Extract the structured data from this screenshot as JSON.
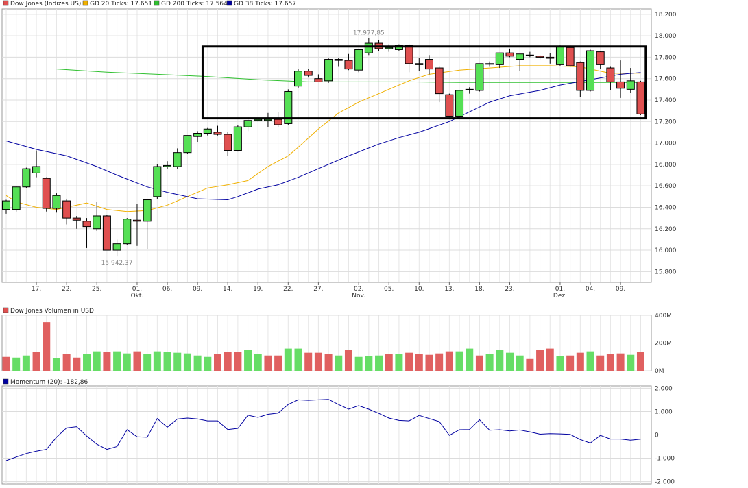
{
  "chart_data": [
    {
      "type": "candlestick",
      "legend": [
        {
          "label": "Dow Jones (Indizes US)",
          "color": "#e05050"
        },
        {
          "label": "GD 20 Ticks: 17.651",
          "color": "#f0b000"
        },
        {
          "label": "GD 200 Ticks: 17.564",
          "color": "#30c030"
        },
        {
          "label": "GD 38 Ticks: 17.657",
          "color": "#0000a0"
        }
      ],
      "ylim": [
        15700,
        18250
      ],
      "y_ticks": [
        15800,
        16000,
        16200,
        16400,
        16600,
        16800,
        17000,
        17200,
        17400,
        17600,
        17800,
        18000,
        18200
      ],
      "y_tick_labels": [
        "15.800",
        "16.000",
        "16.200",
        "16.400",
        "16.600",
        "16.800",
        "17.000",
        "17.200",
        "17.400",
        "17.600",
        "17.800",
        "18.000",
        "18.200"
      ],
      "x_ticks": [
        {
          "i": 3,
          "label": "17."
        },
        {
          "i": 6,
          "label": "22."
        },
        {
          "i": 9,
          "label": "25."
        },
        {
          "i": 13,
          "label": "01.",
          "sub": "Okt."
        },
        {
          "i": 16,
          "label": "06."
        },
        {
          "i": 19,
          "label": "09."
        },
        {
          "i": 22,
          "label": "14."
        },
        {
          "i": 25,
          "label": "19."
        },
        {
          "i": 28,
          "label": "22."
        },
        {
          "i": 31,
          "label": "27."
        },
        {
          "i": 35,
          "label": "02.",
          "sub": "Nov."
        },
        {
          "i": 38,
          "label": "05."
        },
        {
          "i": 41,
          "label": "10."
        },
        {
          "i": 44,
          "label": "13."
        },
        {
          "i": 47,
          "label": "18."
        },
        {
          "i": 50,
          "label": "23."
        },
        {
          "i": 55,
          "label": "01.",
          "sub": "Dez."
        },
        {
          "i": 58,
          "label": "04."
        },
        {
          "i": 61,
          "label": "09."
        }
      ],
      "candles": [
        {
          "o": 16380,
          "h": 16470,
          "l": 16340,
          "c": 16460
        },
        {
          "o": 16380,
          "h": 16600,
          "l": 16360,
          "c": 16590
        },
        {
          "o": 16590,
          "h": 16770,
          "l": 16580,
          "c": 16760
        },
        {
          "o": 16720,
          "h": 16930,
          "l": 16680,
          "c": 16780
        },
        {
          "o": 16670,
          "h": 16680,
          "l": 16360,
          "c": 16390
        },
        {
          "o": 16390,
          "h": 16530,
          "l": 16350,
          "c": 16510
        },
        {
          "o": 16460,
          "h": 16480,
          "l": 16240,
          "c": 16300
        },
        {
          "o": 16300,
          "h": 16320,
          "l": 16200,
          "c": 16280
        },
        {
          "o": 16270,
          "h": 16300,
          "l": 16020,
          "c": 16220
        },
        {
          "o": 16200,
          "h": 16450,
          "l": 16180,
          "c": 16320
        },
        {
          "o": 16320,
          "h": 16330,
          "l": 16000,
          "c": 16000
        },
        {
          "o": 16000,
          "h": 16100,
          "l": 15942,
          "c": 16060
        },
        {
          "o": 16060,
          "h": 16300,
          "l": 16050,
          "c": 16290
        },
        {
          "o": 16280,
          "h": 16430,
          "l": 16040,
          "c": 16270
        },
        {
          "o": 16270,
          "h": 16480,
          "l": 16010,
          "c": 16470
        },
        {
          "o": 16500,
          "h": 16800,
          "l": 16480,
          "c": 16780
        },
        {
          "o": 16780,
          "h": 16830,
          "l": 16760,
          "c": 16790
        },
        {
          "o": 16780,
          "h": 16950,
          "l": 16760,
          "c": 16910
        },
        {
          "o": 16910,
          "h": 17070,
          "l": 16900,
          "c": 17070
        },
        {
          "o": 17060,
          "h": 17110,
          "l": 17010,
          "c": 17090
        },
        {
          "o": 17090,
          "h": 17140,
          "l": 17070,
          "c": 17130
        },
        {
          "o": 17100,
          "h": 17160,
          "l": 17070,
          "c": 17080
        },
        {
          "o": 17080,
          "h": 17100,
          "l": 16880,
          "c": 16930
        },
        {
          "o": 16930,
          "h": 17170,
          "l": 16920,
          "c": 17150
        },
        {
          "o": 17150,
          "h": 17240,
          "l": 17110,
          "c": 17210
        },
        {
          "o": 17210,
          "h": 17230,
          "l": 17200,
          "c": 17220
        },
        {
          "o": 17210,
          "h": 17280,
          "l": 17150,
          "c": 17220
        },
        {
          "o": 17220,
          "h": 17290,
          "l": 17150,
          "c": 17170
        },
        {
          "o": 17180,
          "h": 17500,
          "l": 17170,
          "c": 17480
        },
        {
          "o": 17530,
          "h": 17690,
          "l": 17510,
          "c": 17670
        },
        {
          "o": 17670,
          "h": 17690,
          "l": 17610,
          "c": 17630
        },
        {
          "o": 17600,
          "h": 17640,
          "l": 17570,
          "c": 17570
        },
        {
          "o": 17580,
          "h": 17790,
          "l": 17560,
          "c": 17780
        },
        {
          "o": 17780,
          "h": 17790,
          "l": 17710,
          "c": 17770
        },
        {
          "o": 17770,
          "h": 17830,
          "l": 17680,
          "c": 17690
        },
        {
          "o": 17680,
          "h": 17880,
          "l": 17660,
          "c": 17870
        },
        {
          "o": 17840,
          "h": 17978,
          "l": 17820,
          "c": 17930
        },
        {
          "o": 17930,
          "h": 17960,
          "l": 17860,
          "c": 17880
        },
        {
          "o": 17880,
          "h": 17920,
          "l": 17850,
          "c": 17890
        },
        {
          "o": 17870,
          "h": 17920,
          "l": 17860,
          "c": 17910
        },
        {
          "o": 17910,
          "h": 17920,
          "l": 17660,
          "c": 17740
        },
        {
          "o": 17740,
          "h": 17790,
          "l": 17670,
          "c": 17730
        },
        {
          "o": 17780,
          "h": 17820,
          "l": 17640,
          "c": 17690
        },
        {
          "o": 17700,
          "h": 17710,
          "l": 17380,
          "c": 17460
        },
        {
          "o": 17450,
          "h": 17460,
          "l": 17240,
          "c": 17250
        },
        {
          "o": 17250,
          "h": 17490,
          "l": 17230,
          "c": 17490
        },
        {
          "o": 17500,
          "h": 17520,
          "l": 17460,
          "c": 17500
        },
        {
          "o": 17490,
          "h": 17740,
          "l": 17480,
          "c": 17740
        },
        {
          "o": 17740,
          "h": 17760,
          "l": 17710,
          "c": 17740
        },
        {
          "o": 17730,
          "h": 17830,
          "l": 17700,
          "c": 17840
        },
        {
          "o": 17840,
          "h": 17880,
          "l": 17800,
          "c": 17810
        },
        {
          "o": 17780,
          "h": 17830,
          "l": 17670,
          "c": 17830
        },
        {
          "o": 17820,
          "h": 17850,
          "l": 17800,
          "c": 17820
        },
        {
          "o": 17810,
          "h": 17820,
          "l": 17780,
          "c": 17800
        },
        {
          "o": 17800,
          "h": 17840,
          "l": 17740,
          "c": 17790
        },
        {
          "o": 17730,
          "h": 17910,
          "l": 17720,
          "c": 17900
        },
        {
          "o": 17890,
          "h": 17910,
          "l": 17710,
          "c": 17720
        },
        {
          "o": 17750,
          "h": 17760,
          "l": 17430,
          "c": 17490
        },
        {
          "o": 17490,
          "h": 17870,
          "l": 17480,
          "c": 17860
        },
        {
          "o": 17850,
          "h": 17860,
          "l": 17690,
          "c": 17730
        },
        {
          "o": 17700,
          "h": 17710,
          "l": 17490,
          "c": 17570
        },
        {
          "o": 17570,
          "h": 17770,
          "l": 17420,
          "c": 17510
        },
        {
          "o": 17500,
          "h": 17700,
          "l": 17470,
          "c": 17580
        },
        {
          "o": 17570,
          "h": 17580,
          "l": 17260,
          "c": 17270
        }
      ],
      "ma20": [
        {
          "i": 0,
          "v": 16510
        },
        {
          "i": 1,
          "v": 16450
        },
        {
          "i": 3,
          "v": 16400
        },
        {
          "i": 5,
          "v": 16380
        },
        {
          "i": 8,
          "v": 16440
        },
        {
          "i": 10,
          "v": 16380
        },
        {
          "i": 12,
          "v": 16360
        },
        {
          "i": 14,
          "v": 16370
        },
        {
          "i": 16,
          "v": 16420
        },
        {
          "i": 18,
          "v": 16500
        },
        {
          "i": 20,
          "v": 16580
        },
        {
          "i": 22,
          "v": 16610
        },
        {
          "i": 24,
          "v": 16650
        },
        {
          "i": 26,
          "v": 16780
        },
        {
          "i": 28,
          "v": 16880
        },
        {
          "i": 29,
          "v": 16960
        },
        {
          "i": 31,
          "v": 17130
        },
        {
          "i": 33,
          "v": 17280
        },
        {
          "i": 35,
          "v": 17380
        },
        {
          "i": 37,
          "v": 17460
        },
        {
          "i": 40,
          "v": 17580
        },
        {
          "i": 42,
          "v": 17640
        },
        {
          "i": 45,
          "v": 17680
        },
        {
          "i": 48,
          "v": 17700
        },
        {
          "i": 51,
          "v": 17720
        },
        {
          "i": 54,
          "v": 17720
        },
        {
          "i": 57,
          "v": 17710
        },
        {
          "i": 60,
          "v": 17650
        },
        {
          "i": 63,
          "v": 17651
        }
      ],
      "ma200": [
        {
          "i": 5,
          "v": 17690
        },
        {
          "i": 10,
          "v": 17660
        },
        {
          "i": 15,
          "v": 17640
        },
        {
          "i": 20,
          "v": 17620
        },
        {
          "i": 25,
          "v": 17590
        },
        {
          "i": 30,
          "v": 17570
        },
        {
          "i": 35,
          "v": 17570
        },
        {
          "i": 40,
          "v": 17570
        },
        {
          "i": 45,
          "v": 17565
        },
        {
          "i": 50,
          "v": 17565
        },
        {
          "i": 55,
          "v": 17565
        },
        {
          "i": 60,
          "v": 17564
        },
        {
          "i": 63,
          "v": 17564
        }
      ],
      "ma38": [
        {
          "i": 0,
          "v": 17020
        },
        {
          "i": 3,
          "v": 16940
        },
        {
          "i": 6,
          "v": 16880
        },
        {
          "i": 9,
          "v": 16780
        },
        {
          "i": 11,
          "v": 16700
        },
        {
          "i": 14,
          "v": 16590
        },
        {
          "i": 16,
          "v": 16540
        },
        {
          "i": 19,
          "v": 16480
        },
        {
          "i": 22,
          "v": 16470
        },
        {
          "i": 23,
          "v": 16500
        },
        {
          "i": 25,
          "v": 16570
        },
        {
          "i": 27,
          "v": 16610
        },
        {
          "i": 29,
          "v": 16680
        },
        {
          "i": 31,
          "v": 16760
        },
        {
          "i": 34,
          "v": 16880
        },
        {
          "i": 37,
          "v": 16990
        },
        {
          "i": 39,
          "v": 17050
        },
        {
          "i": 41,
          "v": 17100
        },
        {
          "i": 44,
          "v": 17200
        },
        {
          "i": 46,
          "v": 17290
        },
        {
          "i": 48,
          "v": 17380
        },
        {
          "i": 50,
          "v": 17440
        },
        {
          "i": 53,
          "v": 17490
        },
        {
          "i": 55,
          "v": 17540
        },
        {
          "i": 58,
          "v": 17590
        },
        {
          "i": 61,
          "v": 17640
        },
        {
          "i": 63,
          "v": 17657
        }
      ],
      "box": {
        "i_start": 19.5,
        "i_end": 63.5,
        "top": 17900,
        "bottom": 17230
      },
      "annotations": [
        {
          "i": 36,
          "v": 17978,
          "text": "17.977,85",
          "position": "above"
        },
        {
          "i": 11,
          "v": 15942,
          "text": "15.942,37",
          "position": "below"
        }
      ]
    },
    {
      "type": "bar",
      "title": "Dow Jones Volumen in USD",
      "legend_color": "#e05050",
      "ylim": [
        0,
        400
      ],
      "y_ticks": [
        0,
        200,
        400
      ],
      "y_tick_labels": [
        "0M",
        "200M",
        "400M"
      ],
      "values": [
        100,
        95,
        110,
        135,
        350,
        90,
        120,
        95,
        120,
        140,
        135,
        140,
        125,
        140,
        120,
        140,
        135,
        130,
        125,
        110,
        100,
        120,
        135,
        135,
        150,
        120,
        110,
        110,
        160,
        160,
        130,
        130,
        120,
        110,
        150,
        100,
        105,
        110,
        120,
        120,
        130,
        120,
        115,
        125,
        140,
        140,
        160,
        110,
        120,
        150,
        130,
        110,
        85,
        150,
        160,
        105,
        110,
        130,
        140,
        110,
        120,
        125,
        115,
        135
      ],
      "colors": [
        "r",
        "g",
        "g",
        "r",
        "r",
        "g",
        "r",
        "r",
        "g",
        "g",
        "r",
        "g",
        "g",
        "r",
        "g",
        "g",
        "g",
        "g",
        "g",
        "g",
        "g",
        "r",
        "r",
        "r",
        "g",
        "g",
        "r",
        "r",
        "g",
        "g",
        "r",
        "r",
        "r",
        "g",
        "r",
        "g",
        "g",
        "g",
        "r",
        "g",
        "r",
        "r",
        "r",
        "r",
        "r",
        "g",
        "g",
        "r",
        "g",
        "g",
        "g",
        "g",
        "r",
        "r",
        "r",
        "g",
        "r",
        "r",
        "g",
        "r",
        "r",
        "r",
        "g",
        "r"
      ]
    },
    {
      "type": "line",
      "title": "Momentum (20): -182,86",
      "legend_color": "#0000a0",
      "ylim": [
        -2100,
        2100
      ],
      "y_ticks": [
        -2000,
        -1000,
        0,
        1000,
        2000
      ],
      "y_tick_labels": [
        "-2.000",
        "-1.000",
        "0",
        "1.000",
        "2.000"
      ],
      "values": [
        -1100,
        -950,
        -800,
        -700,
        -620,
        -100,
        300,
        350,
        -50,
        -400,
        -620,
        -500,
        220,
        -80,
        -100,
        700,
        330,
        680,
        720,
        680,
        600,
        600,
        230,
        280,
        840,
        750,
        880,
        930,
        1300,
        1500,
        1480,
        1500,
        1520,
        1300,
        1100,
        1250,
        1100,
        920,
        720,
        620,
        600,
        830,
        700,
        570,
        -20,
        220,
        230,
        650,
        200,
        220,
        170,
        210,
        130,
        30,
        50,
        40,
        20,
        -200,
        -350,
        -20,
        -180,
        -180,
        -230,
        -183
      ]
    }
  ]
}
